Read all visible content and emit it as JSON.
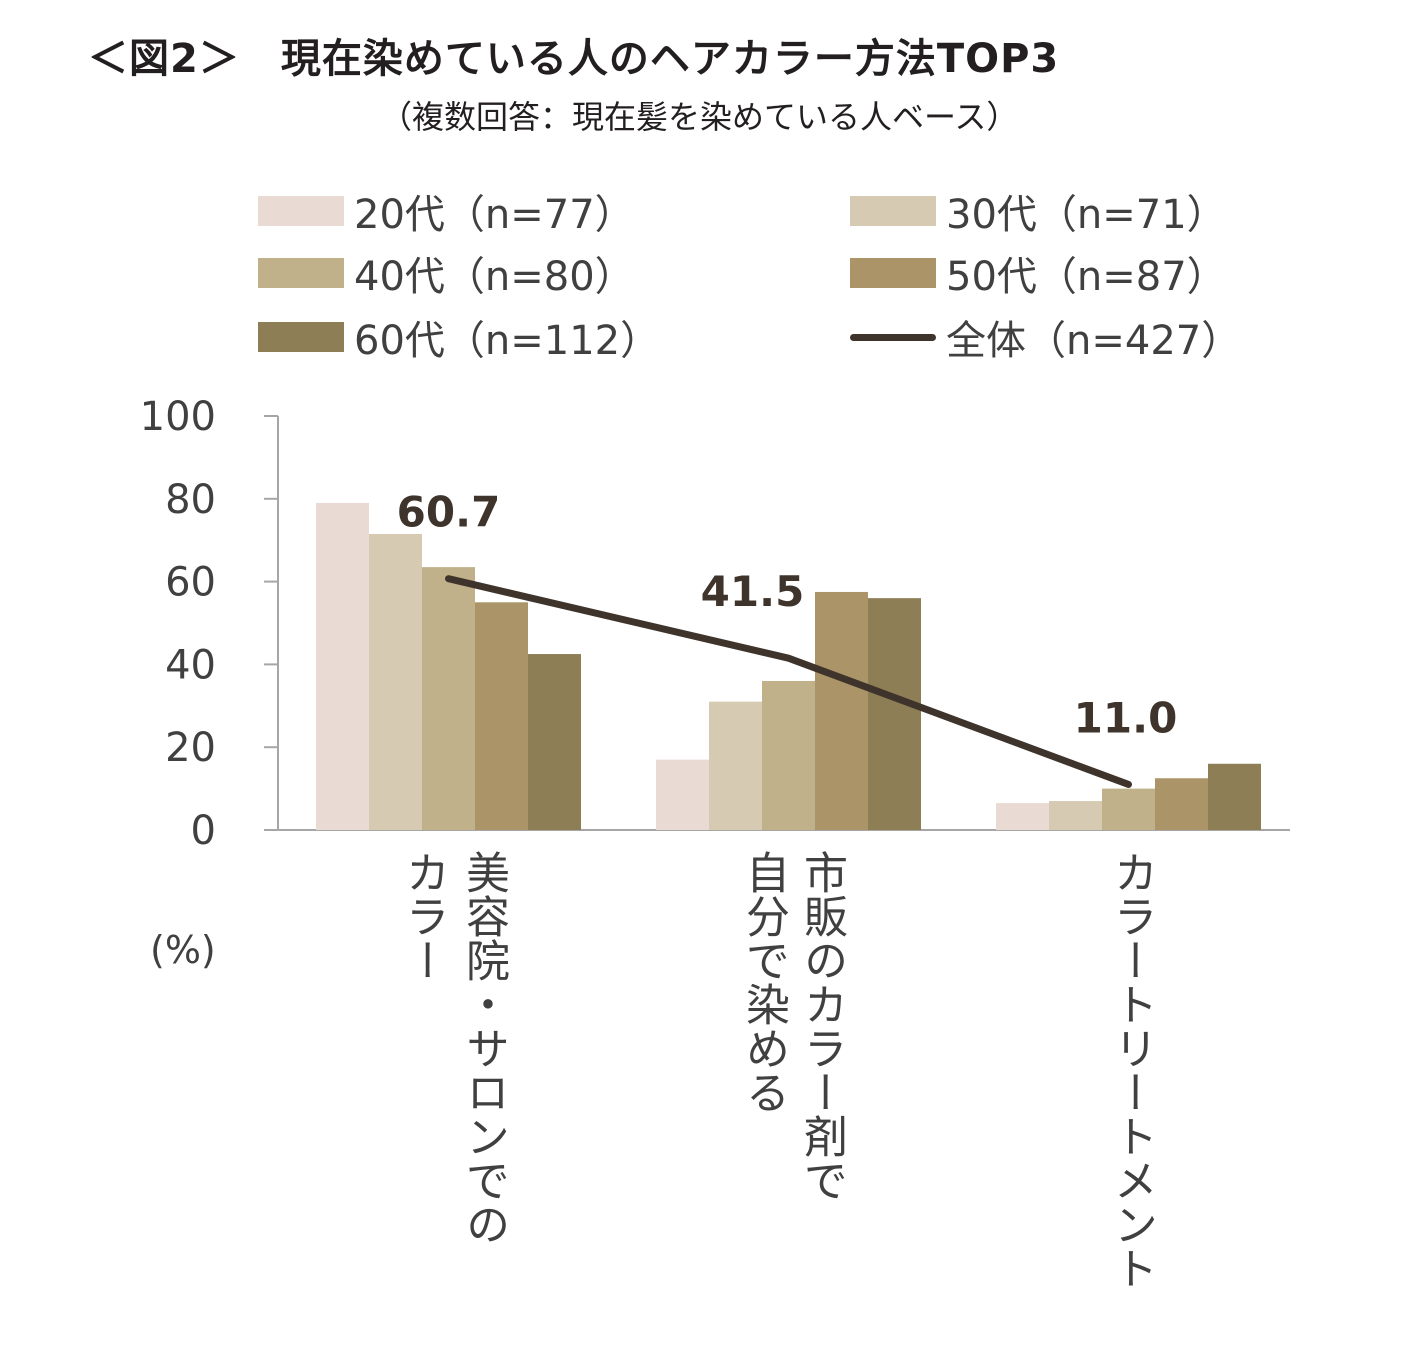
{
  "chart_data": {
    "type": "bar",
    "title": "＜図2＞　現在染めている人のヘアカラー方法TOP3",
    "subtitle": "（複数回答：現在髪を染めている人ベース）",
    "ylabel": "(%)",
    "ylim": [
      0,
      100
    ],
    "yticks": [
      "0",
      "20",
      "40",
      "60",
      "80",
      "100"
    ],
    "categories": [
      [
        "美容院・サロンでの",
        "カラー"
      ],
      [
        "市販のカラー剤で",
        "自分で染める"
      ],
      [
        "カラートリートメント"
      ]
    ],
    "series": [
      {
        "name": "20代（n=77）",
        "color": "#e9dbd3",
        "values": [
          79,
          17,
          6.5
        ]
      },
      {
        "name": "30代（n=71）",
        "color": "#d6cbb2",
        "values": [
          71.5,
          31,
          7
        ]
      },
      {
        "name": "40代（n=80）",
        "color": "#c1b18b",
        "values": [
          63.5,
          36,
          10
        ]
      },
      {
        "name": "50代（n=87）",
        "color": "#ab9468",
        "values": [
          55,
          57.5,
          12.5
        ]
      },
      {
        "name": "60代（n=112）",
        "color": "#8d7e56",
        "values": [
          42.5,
          56,
          16
        ]
      }
    ],
    "line_series": {
      "name": "全体（n=427）",
      "color": "#3f342c",
      "values": [
        60.7,
        41.5,
        11.0
      ]
    },
    "data_labels": [
      "60.7",
      "41.5",
      "11.0"
    ],
    "legend": "top"
  }
}
